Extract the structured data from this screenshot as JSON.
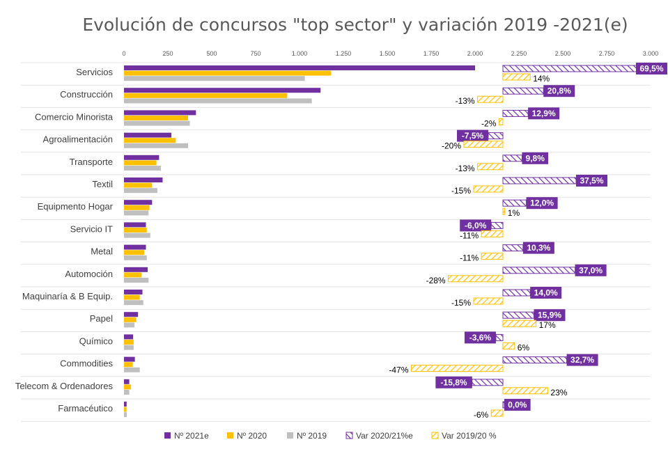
{
  "chart_data": {
    "type": "bar",
    "orientation": "horizontal",
    "title": "Evolución de concursos \"top sector\" y variación 2019 -2021(e)",
    "xlim": [
      0,
      3000
    ],
    "ticks": [
      0,
      250,
      500,
      750,
      1000,
      1250,
      1500,
      1750,
      2000,
      2250,
      2500,
      2750,
      3000
    ],
    "tick_labels": [
      "0",
      "250",
      "500",
      "750",
      "1.000",
      "1.250",
      "1.500",
      "1.750",
      "2.000",
      "2.250",
      "2.500",
      "2.750",
      "3.000"
    ],
    "categories": [
      "Servicios",
      "Construcción",
      "Comercio Minorista",
      "Agroalimentación ",
      "Transporte",
      "Textil",
      "Equipmento Hogar",
      "Servicio  IT",
      "Metal",
      "Automoción",
      "Maquinaría & B Equip.",
      "Papel",
      "Químico",
      "Commodities",
      "Telecom & Ordenadores",
      "Farmacéutico"
    ],
    "series": [
      {
        "name": "Nº 2021e",
        "color": "#7030A0",
        "values": [
          2000,
          1120,
          410,
          270,
          200,
          220,
          160,
          125,
          125,
          135,
          105,
          80,
          52,
          62,
          30,
          15
        ]
      },
      {
        "name": "Nº 2020",
        "color": "#FFC000",
        "values": [
          1180,
          930,
          365,
          295,
          185,
          160,
          145,
          130,
          115,
          100,
          90,
          70,
          55,
          50,
          40,
          15
        ]
      },
      {
        "name": "Nº 2019",
        "color": "#BFBFBF",
        "values": [
          1030,
          1070,
          375,
          365,
          210,
          190,
          140,
          150,
          130,
          140,
          110,
          60,
          55,
          90,
          30,
          16
        ]
      }
    ],
    "variations": [
      {
        "name": "Var 2020/21%e",
        "color": "#7030A0",
        "values": [
          69.5,
          20.8,
          12.9,
          -7.5,
          9.8,
          37.5,
          12.0,
          -6.0,
          10.3,
          37.0,
          14.0,
          15.9,
          -3.6,
          32.7,
          -15.8,
          0.0
        ],
        "labels": [
          "69,5%",
          "20,8%",
          "12,9%",
          "-7,5%",
          "9,8%",
          "37,5%",
          "12,0%",
          "-6,0%",
          "10,3%",
          "37,0%",
          "14,0%",
          "15,9%",
          "-3,6%",
          "32,7%",
          "-15,8%",
          "0,0%"
        ]
      },
      {
        "name": "Var 2019/20 %",
        "color": "#FFC000",
        "values": [
          14,
          -13,
          -2,
          -20,
          -13,
          -15,
          1,
          -11,
          -11,
          -28,
          -15,
          17,
          6,
          -47,
          23,
          -6
        ],
        "labels": [
          "14%",
          "-13%",
          "-2%",
          "-20%",
          "-13%",
          "-15%",
          "1%",
          "-11%",
          "-11%",
          "-28%",
          "-15%",
          "17%",
          "6%",
          "-47%",
          "23%",
          "-6%"
        ]
      }
    ],
    "legend_position": "bottom",
    "grid": false
  }
}
